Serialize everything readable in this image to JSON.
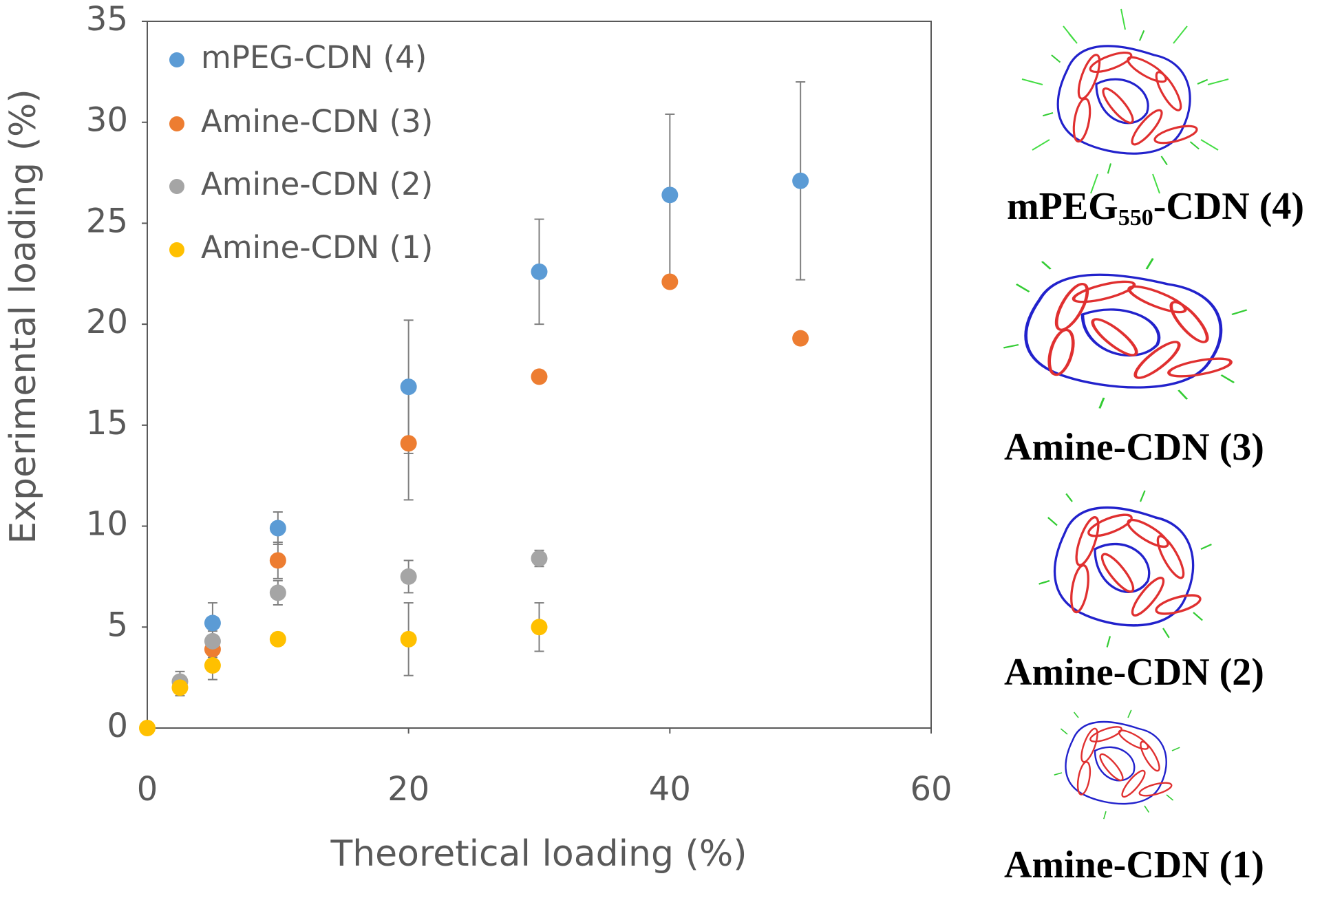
{
  "chart_data": {
    "type": "scatter",
    "x_label": "Theoretical loading (%)",
    "y_label": "Experimental loading (%)",
    "xlim": [
      0,
      60
    ],
    "xticks": [
      0,
      20,
      40,
      60
    ],
    "ylim": [
      0,
      35
    ],
    "yticks": [
      0,
      5,
      10,
      15,
      20,
      25,
      30,
      35
    ],
    "legend": "upper left",
    "series": [
      {
        "name": "mPEG-CDN (4)",
        "color": "#5b9bd5",
        "x": [
          5,
          10,
          20,
          30,
          40,
          50
        ],
        "values": [
          5.2,
          9.9,
          16.9,
          22.6,
          26.4,
          27.1
        ],
        "errors": [
          1.0,
          0.8,
          3.3,
          2.6,
          4.0,
          4.9
        ]
      },
      {
        "name": "Amine-CDN (3)",
        "color": "#ed7d31",
        "x": [
          5,
          10,
          20,
          30,
          40,
          50
        ],
        "values": [
          3.9,
          8.3,
          14.1,
          17.4,
          22.1,
          19.3
        ],
        "errors": [
          0.4,
          0.9,
          2.8,
          0.3,
          0.3,
          0.3
        ]
      },
      {
        "name": "Amine-CDN (2)",
        "color": "#a5a5a5",
        "x": [
          2.5,
          5,
          10,
          20,
          30
        ],
        "values": [
          2.3,
          4.3,
          6.7,
          7.5,
          8.4
        ],
        "errors": [
          0.5,
          0.5,
          0.6,
          0.8,
          0.4
        ]
      },
      {
        "name": "Amine-CDN (1)",
        "color": "#ffc000",
        "x": [
          0,
          2.5,
          5,
          10,
          20,
          30
        ],
        "values": [
          0,
          2.0,
          3.1,
          4.4,
          4.4,
          5.0
        ],
        "errors": [
          0,
          0.4,
          0.7,
          0.3,
          1.8,
          1.2
        ]
      }
    ]
  },
  "structures": [
    {
      "label_parts": [
        "mPEG",
        "550",
        "-CDN (4)"
      ]
    },
    {
      "label_parts": [
        "Amine-CDN (3)"
      ]
    },
    {
      "label_parts": [
        "Amine-CDN (2)"
      ]
    },
    {
      "label_parts": [
        "Amine-CDN (1)"
      ]
    }
  ]
}
